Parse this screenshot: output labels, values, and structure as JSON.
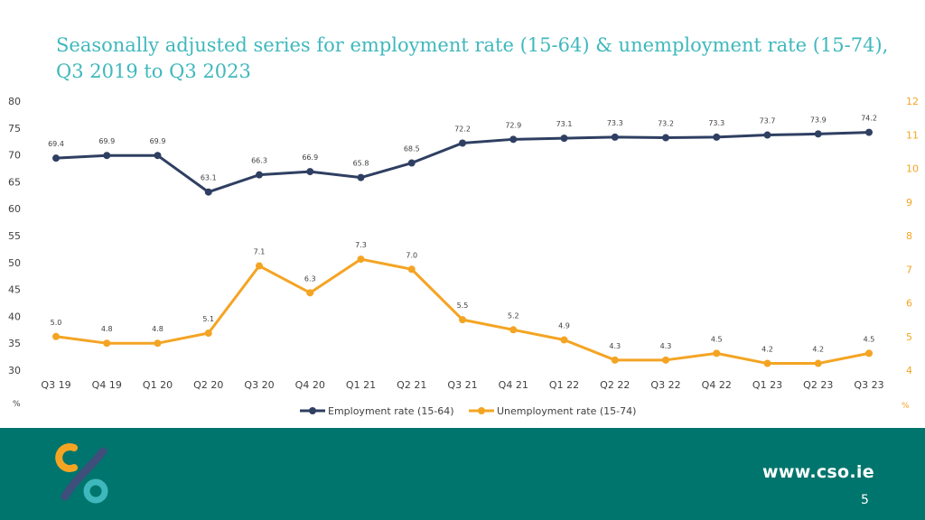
{
  "slide": {
    "title_line1": "Seasonally adjusted series for employment rate (15-64) & unemployment rate (15-74),",
    "title_line2": "Q3 2019 to Q3 2023",
    "website": "www.cso.ie",
    "page_number": "5"
  },
  "colors": {
    "employment": "#2f3f62",
    "unemployment": "#f4a423",
    "title": "#3fb8bd",
    "footer": "#00756d",
    "axis_text": "#404040"
  },
  "chart_data": {
    "type": "line",
    "title": "Seasonally adjusted series for employment rate (15-64) & unemployment rate (15-74), Q3 2019 to Q3 2023",
    "categories": [
      "Q3 19",
      "Q4 19",
      "Q1 20",
      "Q2 20",
      "Q3 20",
      "Q4 20",
      "Q1 21",
      "Q2 21",
      "Q3 21",
      "Q4 21",
      "Q1 22",
      "Q2 22",
      "Q3 22",
      "Q4 22",
      "Q1 23",
      "Q2 23",
      "Q3 23"
    ],
    "left_axis": {
      "label": "%",
      "min": 30,
      "max": 80,
      "ticks": [
        "30",
        "35",
        "40",
        "45",
        "50",
        "55",
        "60",
        "65",
        "70",
        "75",
        "80"
      ]
    },
    "right_axis": {
      "label": "%",
      "min": 4,
      "max": 12,
      "ticks": [
        "4",
        "5",
        "6",
        "7",
        "8",
        "9",
        "10",
        "11",
        "12"
      ]
    },
    "legend_position": "bottom",
    "series": [
      {
        "name": "Employment rate (15-64)",
        "axis": "left",
        "values": [
          69.4,
          69.9,
          69.9,
          63.1,
          66.3,
          66.9,
          65.8,
          68.5,
          72.2,
          72.9,
          73.1,
          73.3,
          73.2,
          73.3,
          73.7,
          73.9,
          74.2
        ],
        "labels": [
          "69.4",
          "69.9",
          "69.9",
          "63.1",
          "66.3",
          "66.9",
          "65.8",
          "68.5",
          "72.2",
          "72.9",
          "73.1",
          "73.3",
          "73.2",
          "73.3",
          "73.7",
          "73.9",
          "74.2"
        ]
      },
      {
        "name": "Unemployment rate (15-74)",
        "axis": "right",
        "values": [
          5.0,
          4.8,
          4.8,
          5.1,
          7.1,
          6.3,
          7.3,
          7.0,
          5.5,
          5.2,
          4.9,
          4.3,
          4.3,
          4.5,
          4.2,
          4.2,
          4.5
        ],
        "labels": [
          "5.0",
          "4.8",
          "4.8",
          "5.1",
          "7.1",
          "6.3",
          "7.3",
          "7.0",
          "5.5",
          "5.2",
          "4.9",
          "4.3",
          "4.3",
          "4.5",
          "4.2",
          "4.2",
          "4.5"
        ]
      }
    ]
  }
}
